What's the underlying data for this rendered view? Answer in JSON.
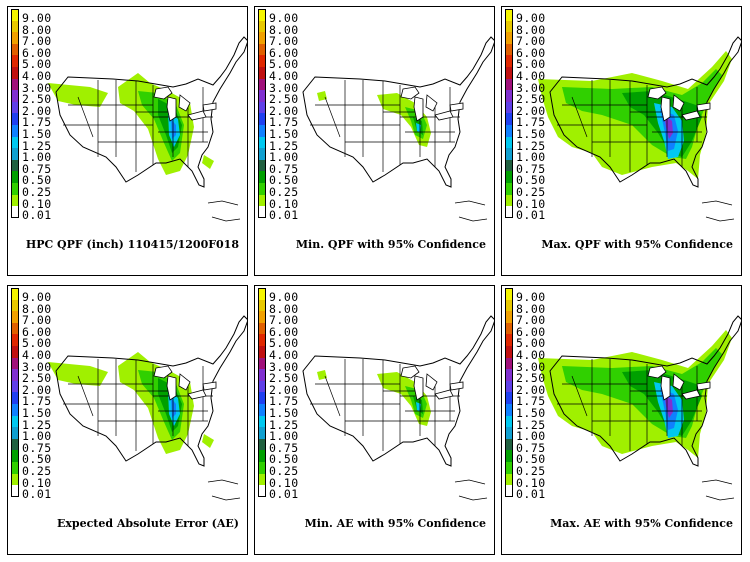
{
  "colorbar": {
    "labels": [
      "9.00",
      "8.00",
      "7.00",
      "6.00",
      "5.00",
      "4.00",
      "3.00",
      "2.50",
      "2.00",
      "1.75",
      "1.50",
      "1.25",
      "1.00",
      "0.75",
      "0.50",
      "0.25",
      "0.10",
      "0.01"
    ],
    "colors": [
      "#f5f500",
      "#e8c800",
      "#f0a000",
      "#e06000",
      "#e02800",
      "#c01010",
      "#a0107a",
      "#8030d0",
      "#6040e8",
      "#2040f0",
      "#1080ff",
      "#00c8f0",
      "#10a0d0",
      "#206040",
      "#00a000",
      "#30d000",
      "#a0f000",
      "#ffffff"
    ]
  },
  "panels": [
    {
      "caption": "HPC QPF (inch) 110415/1200F018",
      "precip_level": "medium"
    },
    {
      "caption": "Min. QPF with 95% Confidence",
      "precip_level": "low"
    },
    {
      "caption": "Max. QPF with 95% Confidence",
      "precip_level": "high"
    },
    {
      "caption": "Expected Absolute Error (AE)",
      "precip_level": "medium"
    },
    {
      "caption": "Min. AE with 95% Confidence",
      "precip_level": "low"
    },
    {
      "caption": "Max. AE with 95% Confidence",
      "precip_level": "high"
    }
  ]
}
